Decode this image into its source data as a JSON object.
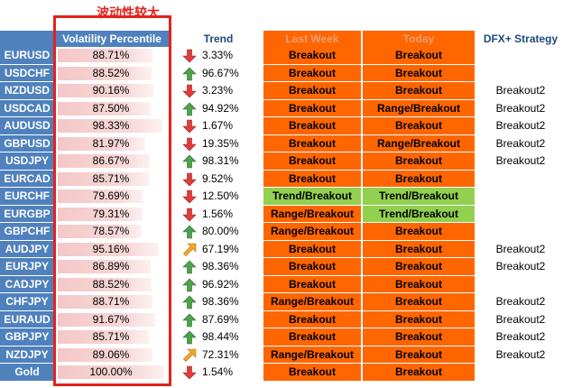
{
  "annotation": "波动性较大",
  "headers": {
    "volatility": "Volatility Percentile",
    "trend": "Trend",
    "last_week": "Last Week",
    "today": "Today",
    "dfx": "DFX+ Strategy"
  },
  "colors": {
    "header_blue": "#4f81bd",
    "orange": "#ff6600",
    "green_cell": "#92d050",
    "up_arrow": "#4ea24e",
    "down_arrow": "#e03c3c",
    "side_arrow": "#f5a623",
    "highlight_box": "#e2231a"
  },
  "rows": [
    {
      "pair": "EURUSD",
      "volatility": "88.71%",
      "vol_pct": 88.71,
      "trend_dir": "down",
      "trend": "3.33%",
      "last_week": "Breakout",
      "lw_color": "orange",
      "today": "Breakout",
      "td_color": "orange",
      "dfx": ""
    },
    {
      "pair": "USDCHF",
      "volatility": "88.52%",
      "vol_pct": 88.52,
      "trend_dir": "up",
      "trend": "96.67%",
      "last_week": "Breakout",
      "lw_color": "orange",
      "today": "Breakout",
      "td_color": "orange",
      "dfx": ""
    },
    {
      "pair": "NZDUSD",
      "volatility": "90.16%",
      "vol_pct": 90.16,
      "trend_dir": "down",
      "trend": "3.23%",
      "last_week": "Breakout",
      "lw_color": "orange",
      "today": "Breakout",
      "td_color": "orange",
      "dfx": "Breakout2"
    },
    {
      "pair": "USDCAD",
      "volatility": "87.50%",
      "vol_pct": 87.5,
      "trend_dir": "up",
      "trend": "94.92%",
      "last_week": "Breakout",
      "lw_color": "orange",
      "today": "Range/Breakout",
      "td_color": "orange",
      "dfx": "Breakout2"
    },
    {
      "pair": "AUDUSD",
      "volatility": "98.33%",
      "vol_pct": 98.33,
      "trend_dir": "down",
      "trend": "1.67%",
      "last_week": "Breakout",
      "lw_color": "orange",
      "today": "Breakout",
      "td_color": "orange",
      "dfx": "Breakout2"
    },
    {
      "pair": "GBPUSD",
      "volatility": "81.97%",
      "vol_pct": 81.97,
      "trend_dir": "down",
      "trend": "19.35%",
      "last_week": "Breakout",
      "lw_color": "orange",
      "today": "Range/Breakout",
      "td_color": "orange",
      "dfx": "Breakout2"
    },
    {
      "pair": "USDJPY",
      "volatility": "86.67%",
      "vol_pct": 86.67,
      "trend_dir": "up",
      "trend": "98.31%",
      "last_week": "Breakout",
      "lw_color": "orange",
      "today": "Breakout",
      "td_color": "orange",
      "dfx": "Breakout2"
    },
    {
      "pair": "EURCAD",
      "volatility": "85.71%",
      "vol_pct": 85.71,
      "trend_dir": "down",
      "trend": "9.52%",
      "last_week": "Breakout",
      "lw_color": "orange",
      "today": "Breakout",
      "td_color": "orange",
      "dfx": ""
    },
    {
      "pair": "EURCHF",
      "volatility": "79.69%",
      "vol_pct": 79.69,
      "trend_dir": "down",
      "trend": "12.50%",
      "last_week": "Trend/Breakout",
      "lw_color": "green",
      "today": "Trend/Breakout",
      "td_color": "green",
      "dfx": ""
    },
    {
      "pair": "EURGBP",
      "volatility": "79.31%",
      "vol_pct": 79.31,
      "trend_dir": "down",
      "trend": "1.56%",
      "last_week": "Range/Breakout",
      "lw_color": "orange",
      "today": "Trend/Breakout",
      "td_color": "green",
      "dfx": ""
    },
    {
      "pair": "GBPCHF",
      "volatility": "78.57%",
      "vol_pct": 78.57,
      "trend_dir": "up",
      "trend": "80.00%",
      "last_week": "Range/Breakout",
      "lw_color": "orange",
      "today": "Breakout",
      "td_color": "orange",
      "dfx": ""
    },
    {
      "pair": "AUDJPY",
      "volatility": "95.16%",
      "vol_pct": 95.16,
      "trend_dir": "side",
      "trend": "67.19%",
      "last_week": "Breakout",
      "lw_color": "orange",
      "today": "Breakout",
      "td_color": "orange",
      "dfx": "Breakout2"
    },
    {
      "pair": "EURJPY",
      "volatility": "86.89%",
      "vol_pct": 86.89,
      "trend_dir": "up",
      "trend": "98.36%",
      "last_week": "Breakout",
      "lw_color": "orange",
      "today": "Breakout",
      "td_color": "orange",
      "dfx": "Breakout2"
    },
    {
      "pair": "CADJPY",
      "volatility": "88.52%",
      "vol_pct": 88.52,
      "trend_dir": "up",
      "trend": "96.92%",
      "last_week": "Breakout",
      "lw_color": "orange",
      "today": "Breakout",
      "td_color": "orange",
      "dfx": ""
    },
    {
      "pair": "CHFJPY",
      "volatility": "88.71%",
      "vol_pct": 88.71,
      "trend_dir": "up",
      "trend": "98.36%",
      "last_week": "Range/Breakout",
      "lw_color": "orange",
      "today": "Breakout",
      "td_color": "orange",
      "dfx": "Breakout2"
    },
    {
      "pair": "EURAUD",
      "volatility": "91.67%",
      "vol_pct": 91.67,
      "trend_dir": "up",
      "trend": "87.69%",
      "last_week": "Breakout",
      "lw_color": "orange",
      "today": "Breakout",
      "td_color": "orange",
      "dfx": "Breakout2"
    },
    {
      "pair": "GBPJPY",
      "volatility": "85.71%",
      "vol_pct": 85.71,
      "trend_dir": "up",
      "trend": "98.44%",
      "last_week": "Breakout",
      "lw_color": "orange",
      "today": "Breakout",
      "td_color": "orange",
      "dfx": "Breakout2"
    },
    {
      "pair": "NZDJPY",
      "volatility": "89.06%",
      "vol_pct": 89.06,
      "trend_dir": "side",
      "trend": "72.31%",
      "last_week": "Range/Breakout",
      "lw_color": "orange",
      "today": "Breakout",
      "td_color": "orange",
      "dfx": "Breakout2"
    },
    {
      "pair": "Gold",
      "volatility": "100.00%",
      "vol_pct": 100.0,
      "trend_dir": "down",
      "trend": "1.54%",
      "last_week": "Breakout",
      "lw_color": "orange",
      "today": "Breakout",
      "td_color": "orange",
      "dfx": ""
    }
  ]
}
